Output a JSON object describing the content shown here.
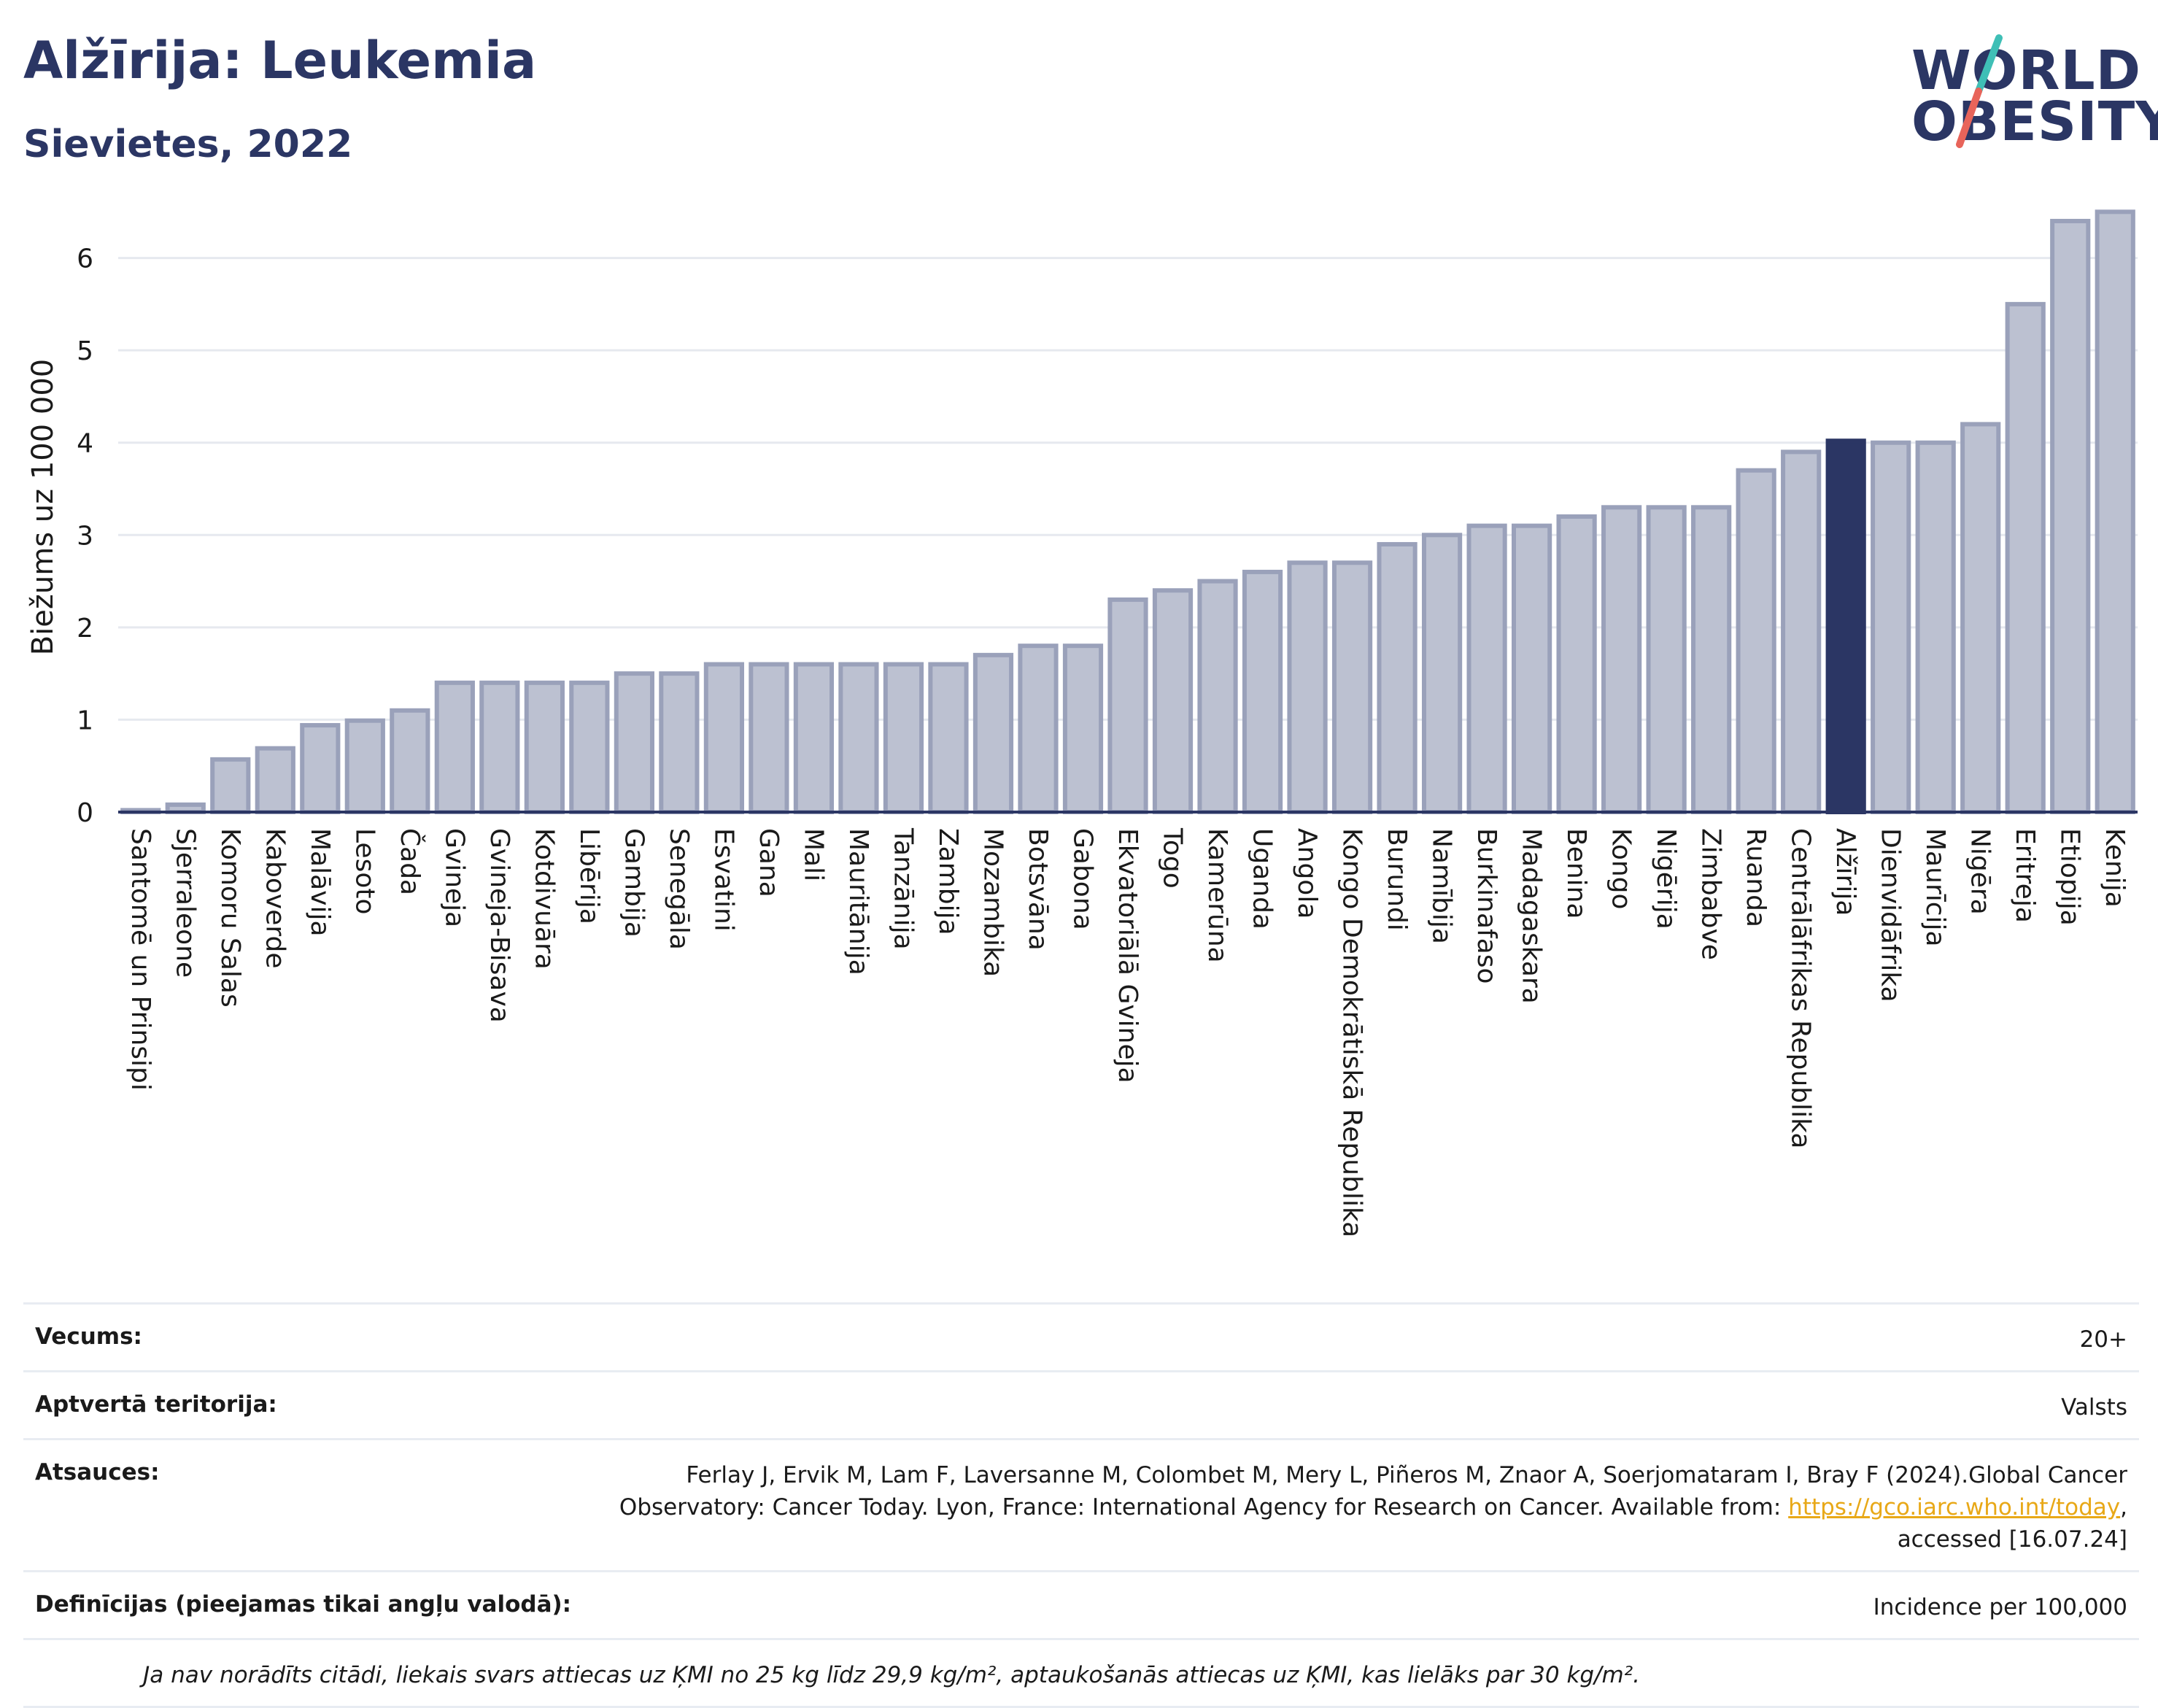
{
  "header": {
    "title": "Alžīrija: Leukemia",
    "subtitle": "Sievietes, 2022",
    "logo_line1": "WORLD",
    "logo_line2": "OBESITY"
  },
  "colors": {
    "bar": "#bcc1d1",
    "bar_border": "#9aa1ba",
    "highlight": "#2b3664",
    "grid": "#e6e9ef",
    "axis": "#2b3664",
    "logo_teal": "#3fbfb6",
    "logo_coral": "#e8645a"
  },
  "chart_data": {
    "type": "bar",
    "ylabel": "Biežums uz 100 000",
    "ylim": [
      0,
      6.7
    ],
    "yticks": [
      0,
      1,
      2,
      3,
      4,
      5,
      6
    ],
    "grid": true,
    "highlight_category": "Alžīrija",
    "categories": [
      "Santomē un Prinsipi",
      "Sjerraleone",
      "Komoru Salas",
      "Kaboverde",
      "Malāvija",
      "Lesoto",
      "Čada",
      "Gvineja",
      "Gvineja-Bisava",
      "Kotdivuāra",
      "Libērija",
      "Gambija",
      "Senegāla",
      "Esvatini",
      "Gana",
      "Mali",
      "Mauritānija",
      "Tanzānija",
      "Zambija",
      "Mozambika",
      "Botsvāna",
      "Gabona",
      "Ekvatoriālā Gvineja",
      "Togo",
      "Kamerūna",
      "Uganda",
      "Angola",
      "Kongo Demokrātiskā Republika",
      "Burundi",
      "Namībija",
      "Burkinafaso",
      "Madagaskara",
      "Benina",
      "Kongo",
      "Nigērija",
      "Zimbabve",
      "Ruanda",
      "Centrālāfrikas Republika",
      "Alžīrija",
      "Dienvidāfrika",
      "Maurīcija",
      "Nigēra",
      "Eritreja",
      "Etiopija",
      "Kenija"
    ],
    "values": [
      0.02,
      0.08,
      0.57,
      0.69,
      0.94,
      0.99,
      1.1,
      1.4,
      1.4,
      1.4,
      1.4,
      1.5,
      1.5,
      1.6,
      1.6,
      1.6,
      1.6,
      1.6,
      1.6,
      1.7,
      1.8,
      1.8,
      2.3,
      2.4,
      2.5,
      2.6,
      2.7,
      2.7,
      2.9,
      3.0,
      3.1,
      3.1,
      3.2,
      3.3,
      3.3,
      3.3,
      3.7,
      3.9,
      4.02,
      4.0,
      4.0,
      4.2,
      5.5,
      6.4,
      6.5
    ]
  },
  "info": {
    "age_label": "Vecums:",
    "age_value": "20+",
    "coverage_label": "Aptvertā teritorija:",
    "coverage_value": "Valsts",
    "refs_label": "Atsauces:",
    "refs_line1": "Ferlay J, Ervik M, Lam F, Laversanne M, Colombet M, Mery L, Piñeros M, Znaor A, Soerjomataram I, Bray F (2024).Global Cancer",
    "refs_line2": "Observatory: Cancer Today. Lyon, France: International Agency for Research on Cancer. Available from:",
    "refs_link": "https://gco.iarc.who.int/today",
    "refs_line3": "accessed [16.07.24]",
    "defs_label": "Definīcijas (pieejamas tikai angļu valodā):",
    "defs_value": "Incidence per 100,000",
    "note": "Ja nav norādīts citādi, liekais svars attiecas uz ĶMI no 25 kg līdz 29,9 kg/m², aptaukošanās attiecas uz ĶMI, kas lielāks par 30 kg/m²."
  }
}
